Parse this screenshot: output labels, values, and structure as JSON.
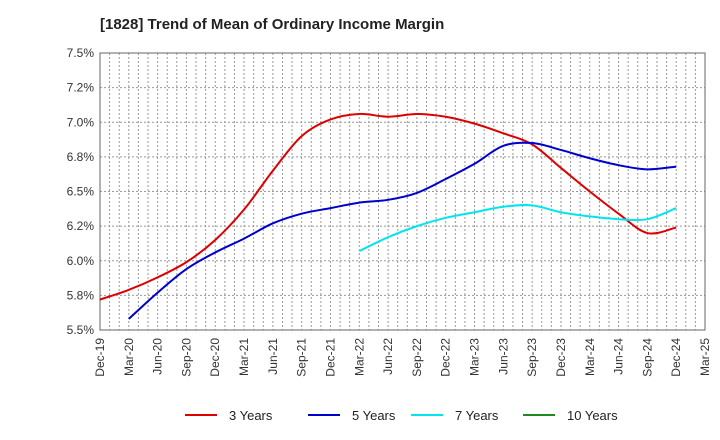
{
  "chart_data": {
    "type": "line",
    "title": "[1828]  Trend of Mean of Ordinary Income Margin",
    "xlabel": "",
    "ylabel": "",
    "y_tick_labels": [
      "5.5%",
      "5.8%",
      "6.0%",
      "6.2%",
      "6.5%",
      "6.8%",
      "7.0%",
      "7.2%",
      "7.5%"
    ],
    "y_tick_values": [
      5.5,
      5.75,
      6.0,
      6.25,
      6.5,
      6.75,
      7.0,
      7.25,
      7.5
    ],
    "ylim": [
      5.5,
      7.5
    ],
    "x_tick_labels": [
      "Dec-19",
      "Mar-20",
      "Jun-20",
      "Sep-20",
      "Dec-20",
      "Mar-21",
      "Jun-21",
      "Sep-21",
      "Dec-21",
      "Mar-22",
      "Jun-22",
      "Sep-22",
      "Dec-22",
      "Mar-23",
      "Jun-23",
      "Sep-23",
      "Dec-23",
      "Mar-24",
      "Jun-24",
      "Sep-24",
      "Dec-24",
      "Mar-25"
    ],
    "grid": true,
    "legend_position": "bottom",
    "series": [
      {
        "name": "3 Years",
        "color": "#dd0000",
        "values": [
          5.72,
          5.79,
          5.88,
          5.99,
          6.15,
          6.37,
          6.65,
          6.9,
          7.02,
          7.06,
          7.04,
          7.06,
          7.04,
          6.99,
          6.92,
          6.84,
          6.67,
          6.5,
          6.34,
          6.2,
          6.24
        ]
      },
      {
        "name": "5 Years",
        "color": "#0000cc",
        "values": [
          null,
          5.58,
          5.77,
          5.94,
          6.06,
          6.16,
          6.27,
          6.34,
          6.38,
          6.42,
          6.44,
          6.49,
          6.59,
          6.7,
          6.83,
          6.85,
          6.8,
          6.74,
          6.69,
          6.66,
          6.68
        ]
      },
      {
        "name": "7 Years",
        "color": "#00e5ee",
        "values": [
          null,
          null,
          null,
          null,
          null,
          null,
          null,
          null,
          null,
          6.07,
          6.17,
          6.25,
          6.31,
          6.35,
          6.39,
          6.4,
          6.35,
          6.32,
          6.3,
          6.3,
          6.38
        ]
      },
      {
        "name": "10 Years",
        "color": "#228822",
        "values": [
          null,
          null,
          null,
          null,
          null,
          null,
          null,
          null,
          null,
          null,
          null,
          null,
          null,
          null,
          null,
          null,
          null,
          null,
          null,
          null,
          null
        ]
      }
    ]
  }
}
